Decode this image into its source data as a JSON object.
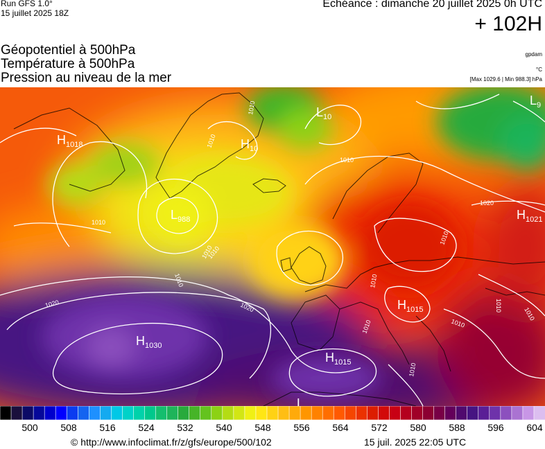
{
  "header": {
    "run_model": "Run GFS 1.0°",
    "run_date": "15 juillet 2025 18Z",
    "echeance": "Echéance : dimanche 20 juillet 2025 0h UTC",
    "lead_time": "+ 102H"
  },
  "parameters": [
    "Géopotentiel à 500hPa",
    "Température à 500hPa",
    "Pression au niveau de la mer"
  ],
  "units": {
    "geopotential": "gpdam",
    "temperature": "°C",
    "pressure_range": "[Max 1029.6 | Min 988.3] hPa"
  },
  "map": {
    "pressure_centers": [
      {
        "type": "H",
        "value": "1018"
      },
      {
        "type": "H",
        "value": "10"
      },
      {
        "type": "L",
        "value": "10"
      },
      {
        "type": "L",
        "value": "9"
      },
      {
        "type": "L",
        "value": "988"
      },
      {
        "type": "H",
        "value": "1021"
      },
      {
        "type": "H",
        "value": "1015"
      },
      {
        "type": "H",
        "value": "1030"
      },
      {
        "type": "H",
        "value": "1015"
      },
      {
        "type": "L",
        "value": ""
      }
    ],
    "isobar_labels": [
      "1010",
      "1010",
      "1010",
      "1010",
      "1010",
      "1010",
      "1010",
      "1010",
      "1010",
      "1010",
      "1010",
      "1010",
      "1020",
      "1020",
      "1020",
      "1010",
      "1010"
    ]
  },
  "legend": {
    "ticks": [
      "500",
      "508",
      "516",
      "524",
      "532",
      "540",
      "548",
      "556",
      "564",
      "572",
      "580",
      "588",
      "596",
      "604"
    ],
    "colors": [
      "#000000",
      "#1a0f3c",
      "#0c0a66",
      "#060899",
      "#0000cc",
      "#0000ff",
      "#0a3cf0",
      "#1464f0",
      "#1e90ff",
      "#14aaf0",
      "#00c8e6",
      "#00d2c8",
      "#00d2aa",
      "#00c88c",
      "#14be6e",
      "#1eb45a",
      "#28aa3c",
      "#46b428",
      "#64c31e",
      "#8cd214",
      "#b4dc14",
      "#d2e614",
      "#f0f014",
      "#ffe614",
      "#ffd214",
      "#ffbe14",
      "#ffaa0a",
      "#ff9600",
      "#ff8200",
      "#ff6e00",
      "#ff5a00",
      "#f54600",
      "#eb3200",
      "#dc1e00",
      "#d20a0a",
      "#c80014",
      "#b4001e",
      "#a00028",
      "#8c0032",
      "#780046",
      "#64005a",
      "#500a6e",
      "#461482",
      "#5a1e96",
      "#6e32aa",
      "#8c50be",
      "#aa73d2",
      "#c896e6",
      "#dcbef0"
    ]
  },
  "footer": {
    "copyright": "© http://www.infoclimat.fr/z/gfs/europe/500/102",
    "generated": "15 juil. 2025 22:05 UTC"
  }
}
